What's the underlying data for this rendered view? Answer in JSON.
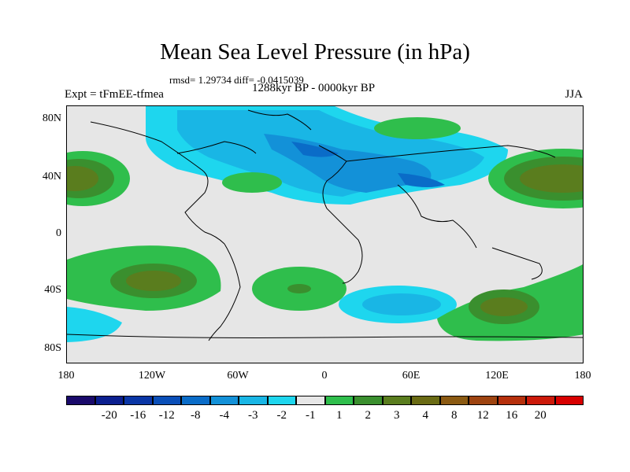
{
  "title": "Mean Sea Level Pressure (in hPa)",
  "stats": "rmsd= 1.29734 diff= -0.0415039",
  "expt": "Expt = tFmEE-tfmea",
  "period": "1288kyr BP - 0000kyr BP",
  "season": "JJA",
  "lat_labels": [
    "80N",
    "40N",
    "0",
    "40S",
    "80S"
  ],
  "lon_labels": [
    "180",
    "120W",
    "60W",
    "0",
    "60E",
    "120E",
    "180"
  ],
  "colorbar": {
    "colors": [
      "#1a0a6b",
      "#0b1f8f",
      "#0a36a6",
      "#0a4fb8",
      "#0a6cc8",
      "#1391d8",
      "#19b6e5",
      "#1ed6ee",
      "#e6e6e6",
      "#2fbe4c",
      "#3a8f2e",
      "#5a7d1e",
      "#6a6b14",
      "#8b5a12",
      "#9e4410",
      "#b6300c",
      "#cc1a0a",
      "#d80000"
    ],
    "labels": [
      "-20",
      "-16",
      "-12",
      "-8",
      "-4",
      "-3",
      "-2",
      "-1",
      "1",
      "2",
      "3",
      "4",
      "8",
      "12",
      "16",
      "20"
    ]
  },
  "colors": {
    "background": "#e6e6e6",
    "neg1": "#1ed6ee",
    "neg2": "#19b6e5",
    "neg3": "#1391d8",
    "neg4": "#0a6cc8",
    "pos1": "#2fbe4c",
    "pos2": "#3a8f2e",
    "pos3": "#5a7d1e",
    "pos4": "#6a6b14"
  }
}
